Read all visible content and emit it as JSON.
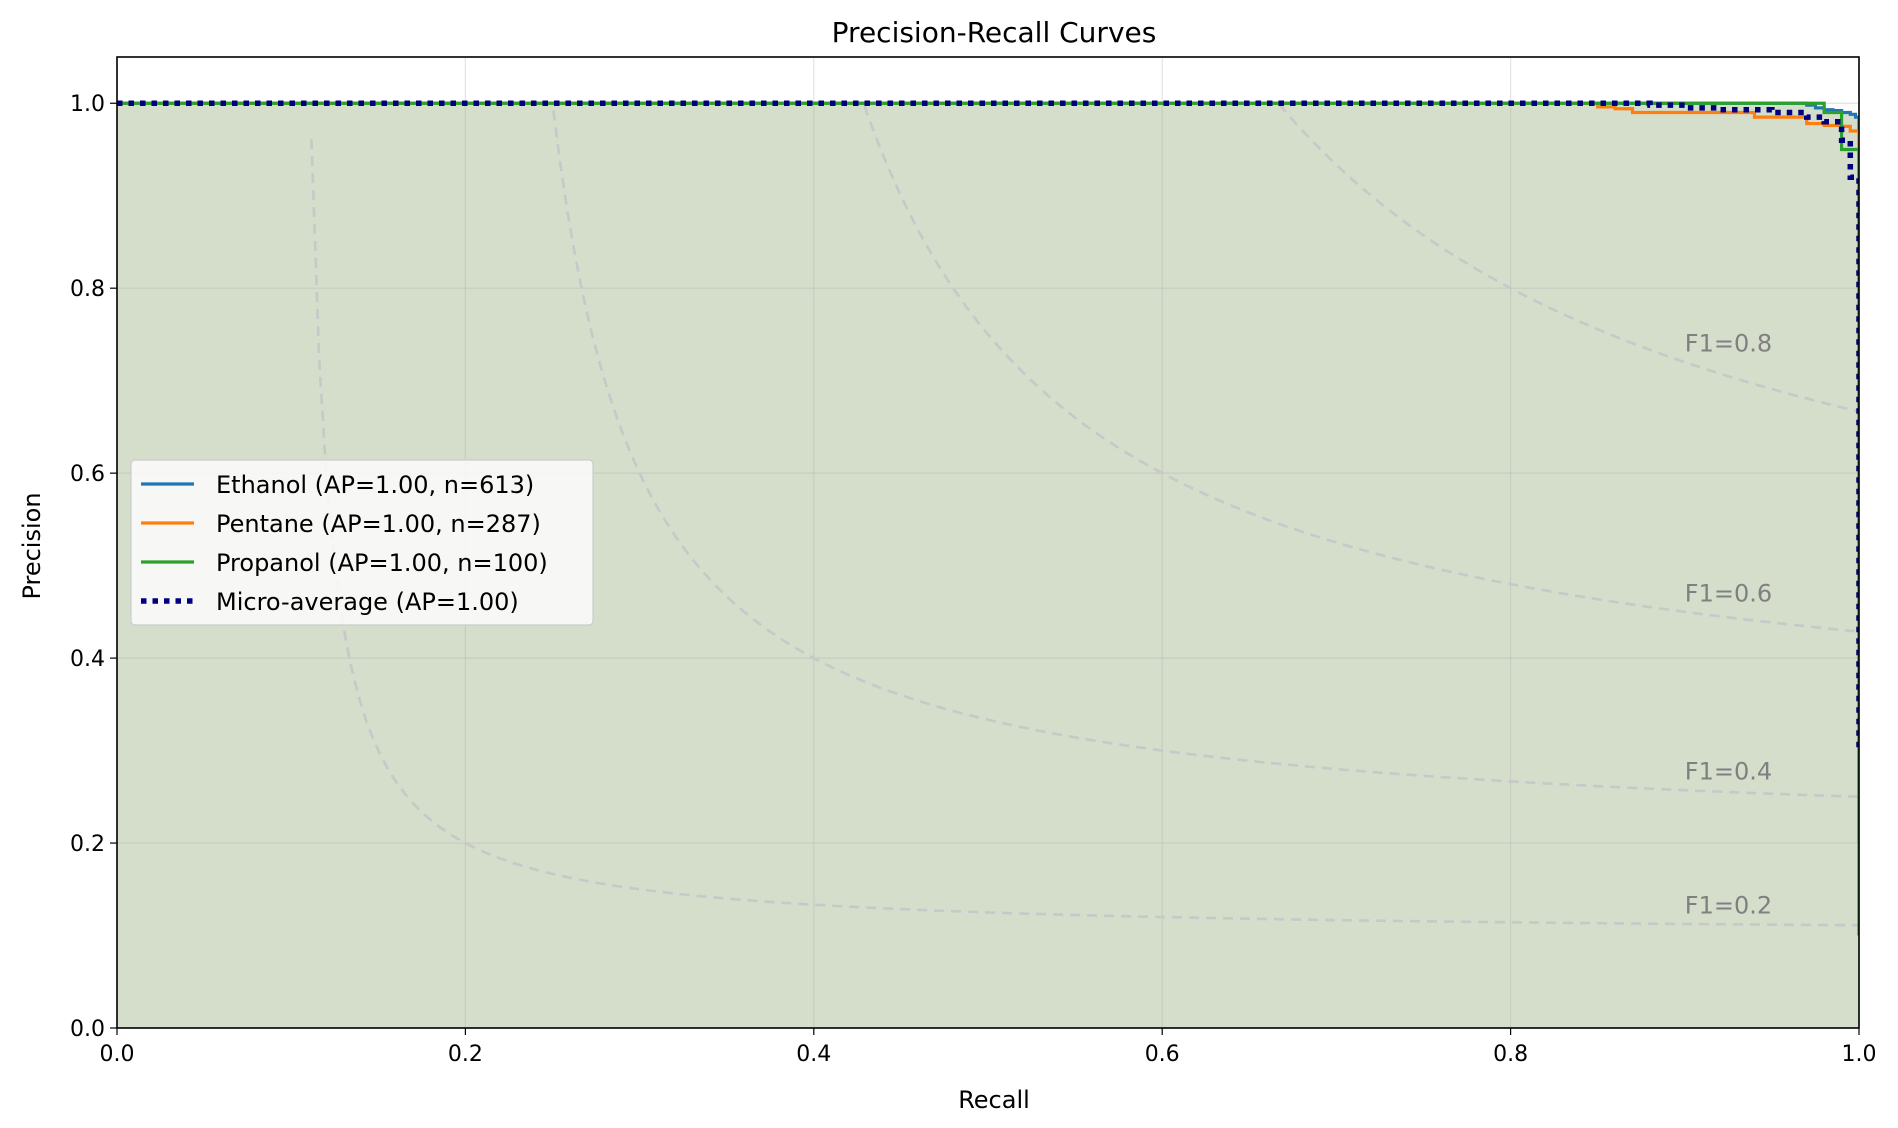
{
  "chart_data": {
    "type": "line",
    "title": "Precision-Recall Curves",
    "xlabel": "Recall",
    "ylabel": "Precision",
    "xlim": [
      0.0,
      1.0
    ],
    "ylim": [
      0.0,
      1.05
    ],
    "xticks": [
      "0.0",
      "0.2",
      "0.4",
      "0.6",
      "0.8",
      "1.0"
    ],
    "yticks": [
      "0.0",
      "0.2",
      "0.4",
      "0.6",
      "0.8",
      "1.0"
    ],
    "grid": true,
    "legend_position": "center-left",
    "iso_f1": [
      {
        "f1": 0.2,
        "label": "F1=0.2"
      },
      {
        "f1": 0.4,
        "label": "F1=0.4"
      },
      {
        "f1": 0.6,
        "label": "F1=0.6"
      },
      {
        "f1": 0.8,
        "label": "F1=0.8"
      }
    ],
    "series": [
      {
        "name": "Ethanol (AP=1.00, n=613)",
        "color": "#1f77b4",
        "style": "solid",
        "recall": [
          0.0,
          0.96,
          0.97,
          0.975,
          0.98,
          0.985,
          0.99,
          0.995,
          0.998,
          1.0,
          1.0
        ],
        "precision": [
          1.0,
          1.0,
          0.998,
          0.995,
          0.993,
          0.992,
          0.99,
          0.988,
          0.985,
          0.98,
          0.2
        ]
      },
      {
        "name": "Pentane (AP=1.00, n=287)",
        "color": "#ff7f0e",
        "style": "solid",
        "recall": [
          0.0,
          0.84,
          0.85,
          0.86,
          0.87,
          0.9,
          0.93,
          0.94,
          0.96,
          0.97,
          0.98,
          0.99,
          0.995,
          1.0,
          1.0
        ],
        "precision": [
          1.0,
          1.0,
          0.996,
          0.994,
          0.99,
          0.99,
          0.99,
          0.985,
          0.985,
          0.978,
          0.976,
          0.975,
          0.97,
          0.9,
          0.2
        ]
      },
      {
        "name": "Propanol (AP=1.00, n=100)",
        "color": "#2ca02c",
        "style": "solid",
        "recall": [
          0.0,
          0.97,
          0.98,
          0.98,
          0.99,
          0.99,
          1.0,
          1.0
        ],
        "precision": [
          1.0,
          1.0,
          1.0,
          0.99,
          0.99,
          0.95,
          0.95,
          0.1
        ]
      },
      {
        "name": "Micro-average (AP=1.00)",
        "color": "#000080",
        "style": "dotted",
        "recall": [
          0.0,
          0.85,
          0.88,
          0.9,
          0.92,
          0.95,
          0.97,
          0.98,
          0.99,
          0.995,
          1.0,
          1.0
        ],
        "precision": [
          1.0,
          1.0,
          0.998,
          0.995,
          0.993,
          0.99,
          0.985,
          0.98,
          0.96,
          0.92,
          0.88,
          0.3
        ]
      }
    ]
  }
}
